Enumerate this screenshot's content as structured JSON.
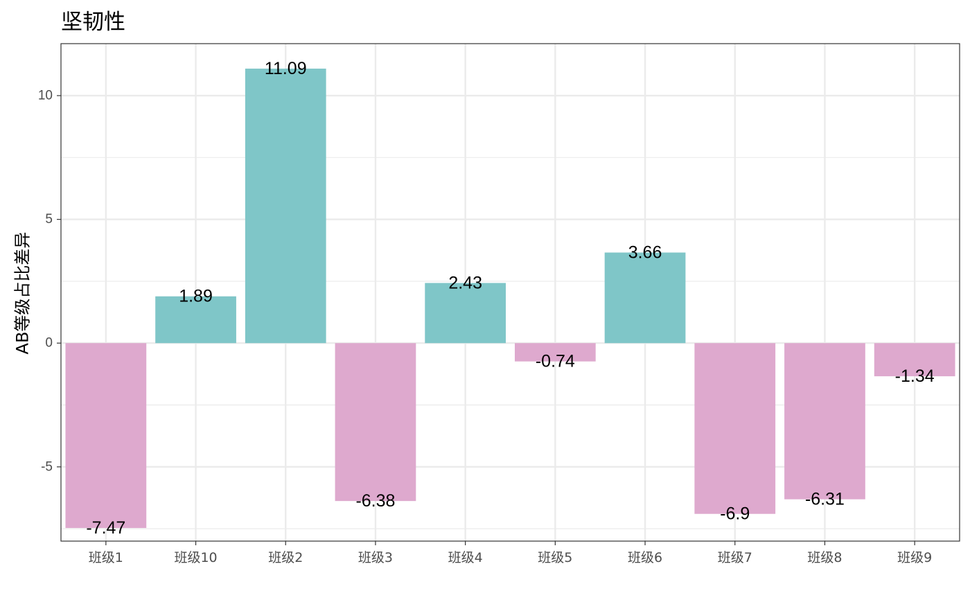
{
  "chart_data": {
    "type": "bar",
    "title": "坚韧性",
    "xlabel": "",
    "ylabel": "AB等级占比差异",
    "categories": [
      "班级1",
      "班级10",
      "班级2",
      "班级3",
      "班级4",
      "班级5",
      "班级6",
      "班级7",
      "班级8",
      "班级9"
    ],
    "values": [
      -7.47,
      1.89,
      11.09,
      -6.38,
      2.43,
      -0.74,
      3.66,
      -6.9,
      -6.31,
      -1.34
    ],
    "data_labels": [
      "-7.47",
      "1.89",
      "11.09",
      "-6.38",
      "2.43",
      "-0.74",
      "3.66",
      "-6.9",
      "-6.31",
      "-1.34"
    ],
    "ylim": [
      -8.0,
      12.1
    ],
    "yticks": [
      -5,
      0,
      5,
      10
    ],
    "ytick_labels": [
      "-5",
      "0",
      "5",
      "10"
    ],
    "grid": true,
    "legend": "none",
    "colors": {
      "positive": "#7fc6c8",
      "negative": "#dea9ce",
      "grid": "#ebebeb",
      "border": "#333333"
    }
  }
}
